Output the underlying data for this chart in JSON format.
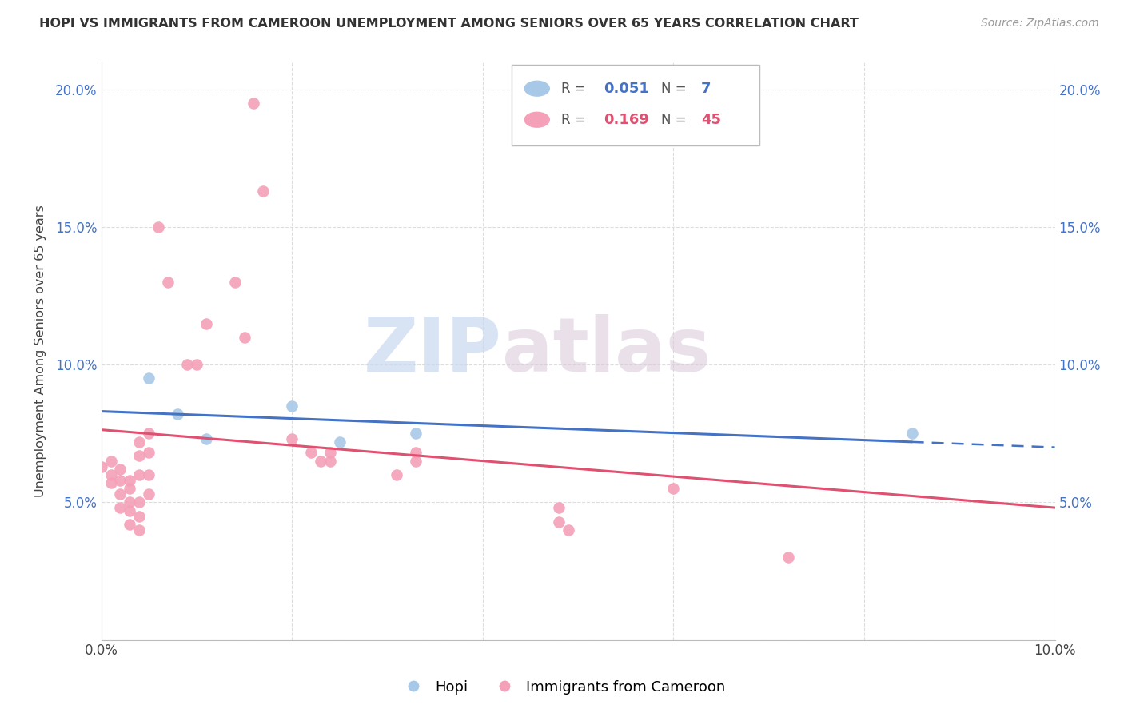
{
  "title": "HOPI VS IMMIGRANTS FROM CAMEROON UNEMPLOYMENT AMONG SENIORS OVER 65 YEARS CORRELATION CHART",
  "source": "Source: ZipAtlas.com",
  "ylabel": "Unemployment Among Seniors over 65 years",
  "xlim": [
    0.0,
    0.1
  ],
  "ylim": [
    0.0,
    0.21
  ],
  "legend1_R": "0.051",
  "legend1_N": "7",
  "legend2_R": "0.169",
  "legend2_N": "45",
  "hopi_color": "#A8C8E8",
  "cameroon_color": "#F4A0B8",
  "trendline_hopi_color": "#4472C4",
  "trendline_cameroon_color": "#E05070",
  "watermark_zip": "ZIP",
  "watermark_atlas": "atlas",
  "hopi_points": [
    [
      0.005,
      0.095
    ],
    [
      0.008,
      0.082
    ],
    [
      0.011,
      0.073
    ],
    [
      0.02,
      0.085
    ],
    [
      0.025,
      0.072
    ],
    [
      0.033,
      0.075
    ],
    [
      0.085,
      0.075
    ]
  ],
  "cameroon_points": [
    [
      0.0,
      0.063
    ],
    [
      0.001,
      0.065
    ],
    [
      0.001,
      0.06
    ],
    [
      0.001,
      0.057
    ],
    [
      0.002,
      0.062
    ],
    [
      0.002,
      0.058
    ],
    [
      0.002,
      0.053
    ],
    [
      0.002,
      0.048
    ],
    [
      0.003,
      0.058
    ],
    [
      0.003,
      0.055
    ],
    [
      0.003,
      0.05
    ],
    [
      0.003,
      0.047
    ],
    [
      0.003,
      0.042
    ],
    [
      0.004,
      0.072
    ],
    [
      0.004,
      0.067
    ],
    [
      0.004,
      0.06
    ],
    [
      0.004,
      0.05
    ],
    [
      0.004,
      0.045
    ],
    [
      0.004,
      0.04
    ],
    [
      0.005,
      0.075
    ],
    [
      0.005,
      0.068
    ],
    [
      0.005,
      0.06
    ],
    [
      0.005,
      0.053
    ],
    [
      0.006,
      0.15
    ],
    [
      0.007,
      0.13
    ],
    [
      0.009,
      0.1
    ],
    [
      0.01,
      0.1
    ],
    [
      0.011,
      0.115
    ],
    [
      0.014,
      0.13
    ],
    [
      0.015,
      0.11
    ],
    [
      0.016,
      0.195
    ],
    [
      0.017,
      0.163
    ],
    [
      0.02,
      0.073
    ],
    [
      0.022,
      0.068
    ],
    [
      0.023,
      0.065
    ],
    [
      0.024,
      0.068
    ],
    [
      0.024,
      0.065
    ],
    [
      0.031,
      0.06
    ],
    [
      0.033,
      0.068
    ],
    [
      0.033,
      0.065
    ],
    [
      0.048,
      0.048
    ],
    [
      0.048,
      0.043
    ],
    [
      0.049,
      0.04
    ],
    [
      0.06,
      0.055
    ],
    [
      0.072,
      0.03
    ]
  ]
}
